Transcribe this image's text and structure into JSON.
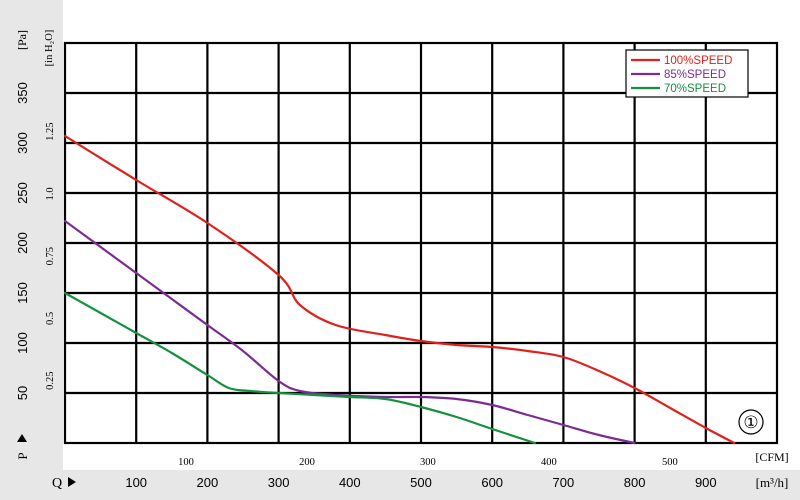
{
  "chart_data": {
    "type": "line",
    "x_cfm_ticks": [
      "100",
      "200",
      "300",
      "400",
      "500"
    ],
    "x_cfm_unit": "[CFM]",
    "x_m3h_ticks": [
      "100",
      "200",
      "300",
      "400",
      "500",
      "600",
      "700",
      "800",
      "900"
    ],
    "x_m3h_unit": "[m³/h]",
    "x_letter": "Q",
    "y_pa_ticks": [
      "50",
      "100",
      "150",
      "200",
      "250",
      "300",
      "350"
    ],
    "y_pa_unit": "[Pa]",
    "y_inh2o_ticks": [
      "0.25",
      "0.5",
      "0.75",
      "1.0",
      "1.25"
    ],
    "y_inh2o_unit": "[in H₂O]",
    "y_letter": "P",
    "xlim_m3h": [
      0,
      1000
    ],
    "ylim_pa": [
      0,
      400
    ],
    "grid": true,
    "legend_position": "top-right",
    "curve_label": "①",
    "series": [
      {
        "name": "100%SPEED",
        "color": "#e0201b",
        "x": [
          0,
          100,
          200,
          300,
          330,
          380,
          450,
          500,
          550,
          600,
          650,
          700,
          750,
          800,
          850,
          900,
          940
        ],
        "y": [
          307,
          263,
          220,
          168,
          138,
          118,
          108,
          102,
          98,
          96,
          92,
          86,
          72,
          55,
          35,
          15,
          0
        ]
      },
      {
        "name": "85%SPEED",
        "color": "#7b2c94",
        "x": [
          0,
          50,
          100,
          150,
          200,
          250,
          300,
          330,
          380,
          450,
          500,
          550,
          600,
          650,
          700,
          750,
          800
        ],
        "y": [
          222,
          196,
          170,
          144,
          118,
          92,
          62,
          52,
          48,
          46,
          46,
          44,
          38,
          28,
          18,
          8,
          0
        ]
      },
      {
        "name": "70%SPEED",
        "color": "#14913f",
        "x": [
          0,
          50,
          100,
          150,
          200,
          230,
          260,
          300,
          350,
          400,
          450,
          500,
          550,
          600,
          660
        ],
        "y": [
          150,
          130,
          110,
          90,
          68,
          55,
          52,
          50,
          48,
          46,
          44,
          36,
          26,
          14,
          0
        ]
      }
    ]
  }
}
